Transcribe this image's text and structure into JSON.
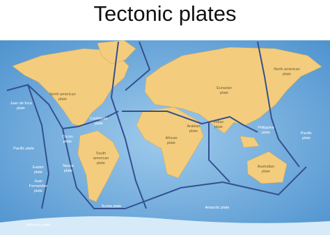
{
  "title": "Tectonic plates",
  "plates": [
    {
      "lines": [
        "North american",
        "plate"
      ]
    },
    {
      "lines": [
        "Juan de fuca",
        "plate"
      ]
    },
    {
      "lines": [
        "Caribbean",
        "plate"
      ]
    },
    {
      "lines": [
        "Cocos",
        "plate"
      ]
    },
    {
      "lines": [
        "Pacific plate"
      ]
    },
    {
      "lines": [
        "Easter",
        "plate"
      ]
    },
    {
      "lines": [
        "Nazca",
        "plate"
      ]
    },
    {
      "lines": [
        "Juan",
        "Fernandez",
        "plate"
      ]
    },
    {
      "lines": [
        "South",
        "american",
        "plate"
      ]
    },
    {
      "lines": [
        "Scotia plate"
      ]
    },
    {
      "lines": [
        "Antarctic plate"
      ]
    },
    {
      "lines": [
        "Antarctic plate"
      ]
    },
    {
      "lines": [
        "African",
        "plate"
      ]
    },
    {
      "lines": [
        "Eurasian",
        "plate"
      ]
    },
    {
      "lines": [
        "Arabian",
        "plate"
      ]
    },
    {
      "lines": [
        "Indian",
        "plate"
      ]
    },
    {
      "lines": [
        "North american",
        "plate"
      ]
    },
    {
      "lines": [
        "Philippine",
        "plate"
      ]
    },
    {
      "lines": [
        "Pacific",
        "plate"
      ]
    },
    {
      "lines": [
        "Australian",
        "plate"
      ]
    }
  ]
}
